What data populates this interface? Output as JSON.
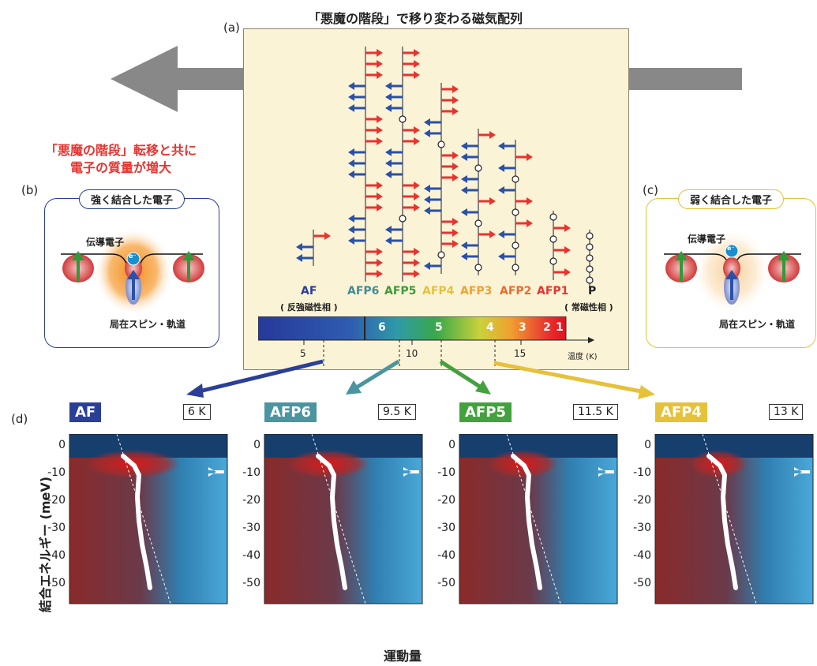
{
  "title": "「悪魔の階段」で移り変わる磁気配列",
  "label_a": "(a)",
  "label_b": "(b)",
  "label_c": "(c)",
  "label_d": "(d)",
  "red_note": [
    "「悪魔の階段」転移と共に",
    "電子の質量が増大"
  ],
  "box_b": {
    "title": "強く結合した電子",
    "conduction": "伝導電子",
    "localized": "局在スピン・軌道",
    "e_label": "e⁻"
  },
  "box_c": {
    "title": "弱く結合した電子",
    "conduction": "伝導電子",
    "localized": "局在スピン・軌道",
    "e_label": "e⁻"
  },
  "phases": [
    {
      "name": "AF",
      "sub": "( 反強磁性相 )",
      "color": "#2a3f97"
    },
    {
      "name": "AFP6",
      "color": "#3f8c98"
    },
    {
      "name": "AFP5",
      "color": "#3e9a3c"
    },
    {
      "name": "AFP4",
      "color": "#e6c13a"
    },
    {
      "name": "AFP3",
      "color": "#f0a030"
    },
    {
      "name": "AFP2",
      "color": "#ee6a2e"
    },
    {
      "name": "AFP1",
      "color": "#e8332e"
    },
    {
      "name": "P",
      "sub": "( 常磁性相 )",
      "color": "#222222"
    }
  ],
  "colorbar": {
    "labels": [
      "6",
      "5",
      "4",
      "3",
      "2",
      "1"
    ],
    "ticks": [
      "5",
      "10",
      "15"
    ],
    "axis_label": "温度 (K)"
  },
  "spectra": [
    {
      "phase": "AF",
      "temp": "6 K",
      "color": "#2a3f97"
    },
    {
      "phase": "AFP6",
      "temp": "9.5 K",
      "color": "#4a95a0"
    },
    {
      "phase": "AFP5",
      "temp": "11.5 K",
      "color": "#43a23e"
    },
    {
      "phase": "AFP4",
      "temp": "13 K",
      "color": "#e6c13a"
    }
  ],
  "y_axis_label": "結合エネルギー (meV)",
  "y_ticks": [
    "0",
    "-10",
    "-20",
    "-30",
    "-40",
    "-50"
  ],
  "x_axis_label": "運動量",
  "colors": {
    "up": "#e8332e",
    "down": "#2a50a8",
    "bg_a": "#fbf3d6"
  }
}
